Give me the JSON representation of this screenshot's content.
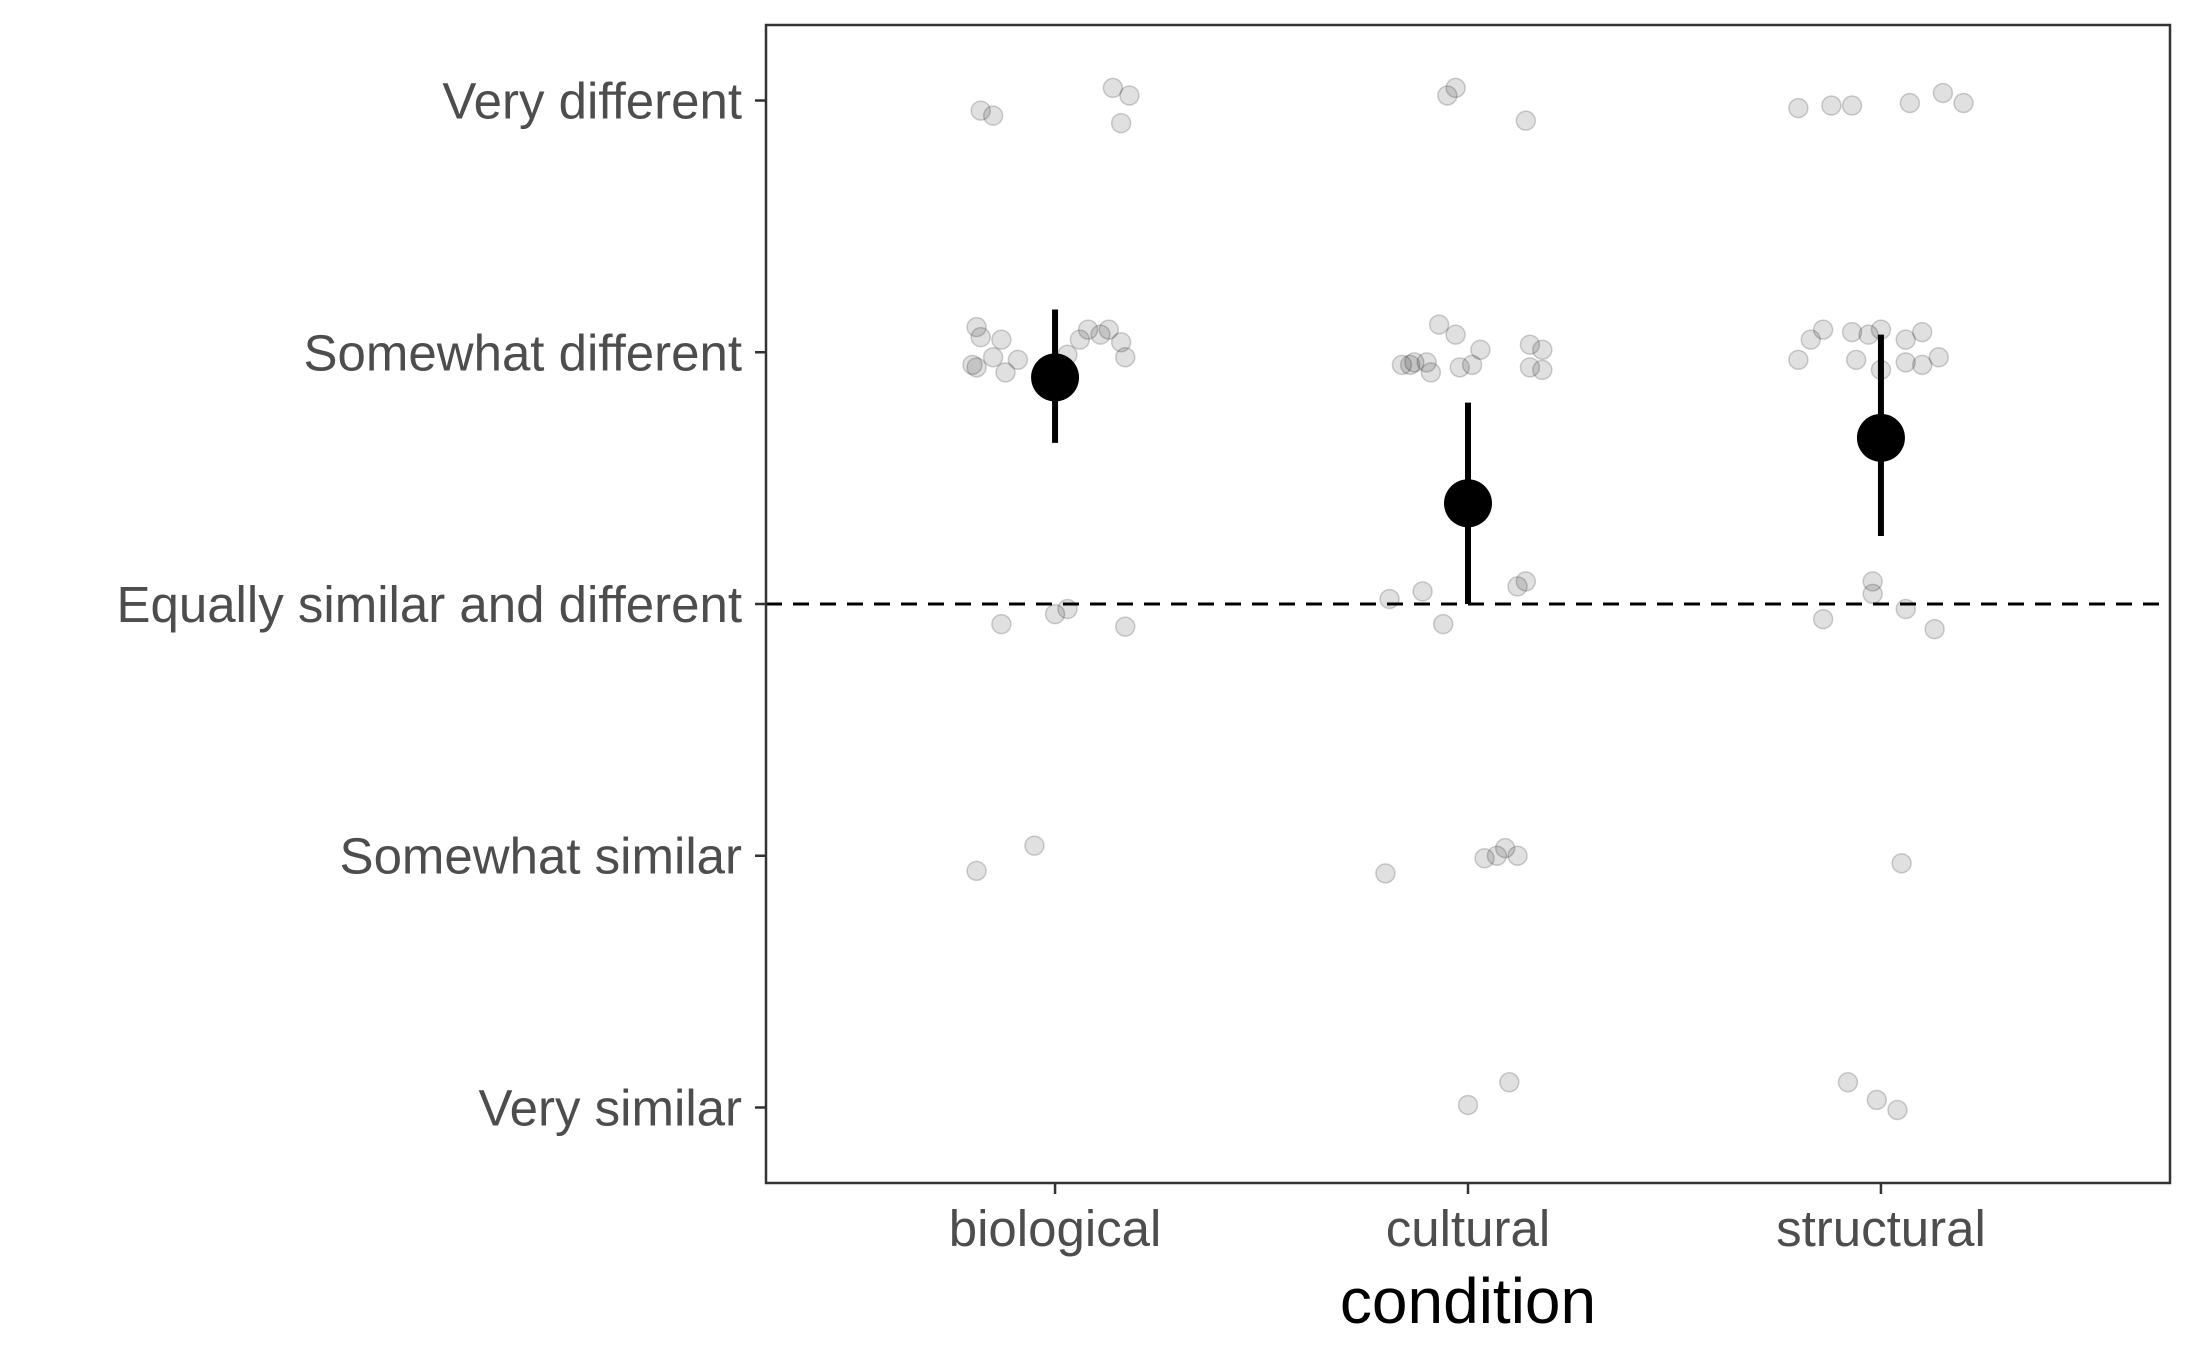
{
  "chart_data": {
    "type": "scatter",
    "xlabel": "condition",
    "ylabel": "",
    "categories": [
      "biological",
      "cultural",
      "structural"
    ],
    "y_levels": [
      "Very similar",
      "Somewhat similar",
      "Equally similar and different",
      "Somewhat different",
      "Very different"
    ],
    "y_values": [
      1,
      2,
      3,
      4,
      5
    ],
    "ylim": [
      0.7,
      5.3
    ],
    "reference_line": {
      "y": 3,
      "style": "dashed"
    },
    "grid": false,
    "summary": [
      {
        "condition": "biological",
        "mean": 3.9,
        "lower": 3.64,
        "upper": 4.17
      },
      {
        "condition": "cultural",
        "mean": 3.4,
        "lower": 3.0,
        "upper": 3.8
      },
      {
        "condition": "structural",
        "mean": 3.66,
        "lower": 3.27,
        "upper": 4.07
      }
    ],
    "points": [
      {
        "x": -0.18,
        "y": 4.96
      },
      {
        "x": -0.15,
        "y": 4.94
      },
      {
        "x": 0.14,
        "y": 5.05
      },
      {
        "x": 0.18,
        "y": 5.02
      },
      {
        "x": 0.16,
        "y": 4.91
      },
      {
        "x": -0.19,
        "y": 4.1
      },
      {
        "x": -0.18,
        "y": 4.06
      },
      {
        "x": -0.13,
        "y": 4.05
      },
      {
        "x": -0.19,
        "y": 3.94
      },
      {
        "x": -0.15,
        "y": 3.98
      },
      {
        "x": -0.12,
        "y": 3.92
      },
      {
        "x": -0.09,
        "y": 3.97
      },
      {
        "x": -0.2,
        "y": 3.95
      },
      {
        "x": 0.08,
        "y": 4.09
      },
      {
        "x": 0.13,
        "y": 4.09
      },
      {
        "x": 0.11,
        "y": 4.07
      },
      {
        "x": 0.06,
        "y": 4.05
      },
      {
        "x": 0.16,
        "y": 4.04
      },
      {
        "x": 0.17,
        "y": 3.98
      },
      {
        "x": 0.03,
        "y": 3.99
      },
      {
        "x": -0.13,
        "y": 2.92
      },
      {
        "x": 0,
        "y": 2.96
      },
      {
        "x": 0.03,
        "y": 2.98
      },
      {
        "x": 0.17,
        "y": 2.91
      },
      {
        "x": -0.19,
        "y": 1.94
      },
      {
        "x": -0.05,
        "y": 2.04
      },
      {
        "x": -0.05,
        "y": 5.02
      },
      {
        "x": -0.03,
        "y": 5.05
      },
      {
        "x": 0.14,
        "y": 4.92
      },
      {
        "x": -0.07,
        "y": 4.11
      },
      {
        "x": -0.03,
        "y": 4.07
      },
      {
        "x": 0.03,
        "y": 4.01
      },
      {
        "x": -0.16,
        "y": 3.95
      },
      {
        "x": -0.13,
        "y": 3.96
      },
      {
        "x": -0.1,
        "y": 3.96
      },
      {
        "x": -0.09,
        "y": 3.92
      },
      {
        "x": -0.14,
        "y": 3.95
      },
      {
        "x": -0.02,
        "y": 3.94
      },
      {
        "x": 0.01,
        "y": 3.95
      },
      {
        "x": 0.15,
        "y": 4.03
      },
      {
        "x": 0.18,
        "y": 4.01
      },
      {
        "x": 0.15,
        "y": 3.94
      },
      {
        "x": 0.18,
        "y": 3.93
      },
      {
        "x": -0.19,
        "y": 3.02
      },
      {
        "x": -0.11,
        "y": 3.05
      },
      {
        "x": -0.06,
        "y": 2.92
      },
      {
        "x": 0.12,
        "y": 3.07
      },
      {
        "x": 0.14,
        "y": 3.09
      },
      {
        "x": -0.2,
        "y": 1.93
      },
      {
        "x": 0.04,
        "y": 1.99
      },
      {
        "x": 0.07,
        "y": 2.0
      },
      {
        "x": 0.09,
        "y": 2.03
      },
      {
        "x": 0.12,
        "y": 2.0
      },
      {
        "x": 0.0,
        "y": 1.01
      },
      {
        "x": 0.1,
        "y": 1.1
      },
      {
        "x": -0.2,
        "y": 4.97
      },
      {
        "x": -0.12,
        "y": 4.98
      },
      {
        "x": -0.07,
        "y": 4.98
      },
      {
        "x": 0.07,
        "y": 4.99
      },
      {
        "x": 0.15,
        "y": 5.03
      },
      {
        "x": 0.2,
        "y": 4.99
      },
      {
        "x": -0.2,
        "y": 3.97
      },
      {
        "x": -0.17,
        "y": 4.05
      },
      {
        "x": -0.14,
        "y": 4.09
      },
      {
        "x": -0.07,
        "y": 4.08
      },
      {
        "x": -0.03,
        "y": 4.07
      },
      {
        "x": -0.06,
        "y": 3.97
      },
      {
        "x": 0.0,
        "y": 4.09
      },
      {
        "x": 0.06,
        "y": 4.05
      },
      {
        "x": 0.1,
        "y": 4.08
      },
      {
        "x": 0.0,
        "y": 3.93
      },
      {
        "x": 0.06,
        "y": 3.96
      },
      {
        "x": 0.1,
        "y": 3.95
      },
      {
        "x": 0.14,
        "y": 3.98
      },
      {
        "x": -0.14,
        "y": 2.94
      },
      {
        "x": -0.02,
        "y": 3.04
      },
      {
        "x": -0.02,
        "y": 3.09
      },
      {
        "x": 0.06,
        "y": 2.98
      },
      {
        "x": 0.13,
        "y": 2.9
      },
      {
        "x": 0.05,
        "y": 1.97
      },
      {
        "x": -0.08,
        "y": 1.1
      },
      {
        "x": -0.01,
        "y": 1.03
      },
      {
        "x": 0.04,
        "y": 0.99
      }
    ]
  }
}
